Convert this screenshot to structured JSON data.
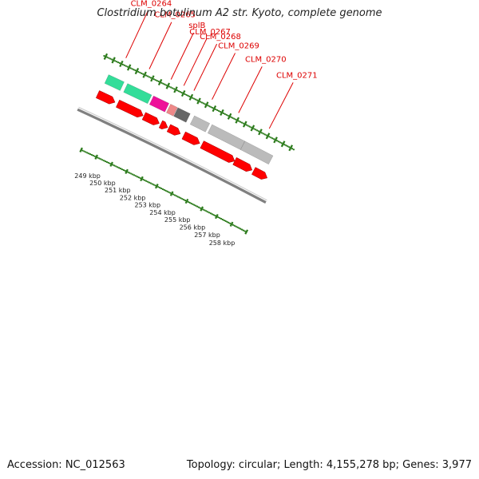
{
  "title": "Clostridium botulinum A2 str. Kyoto, complete genome",
  "footer": {
    "accession": "Accession: NC_012563",
    "summary": "Topology: circular; Length: 4,155,278 bp; Genes: 3,977"
  },
  "colors": {
    "label_red": "#dd0000",
    "cds_red": "#ff0000",
    "backbone": "#808080",
    "tick_green": "#2a7a1a"
  },
  "features": [
    {
      "name": "CLM_0264",
      "start": 247.6,
      "end": 248.6,
      "color": "#33dd99"
    },
    {
      "name": "CLM_0265",
      "start": 248.82,
      "end": 250.38,
      "color": "#33dd99"
    },
    {
      "name": "splB",
      "start": 250.5,
      "end": 251.5,
      "color": "#ee1199"
    },
    {
      "name": "CLM_0267",
      "start": 251.6,
      "end": 252.05,
      "color": "#ee8888"
    },
    {
      "name": "CLM_0268",
      "start": 252.08,
      "end": 252.88,
      "color": "#666666"
    },
    {
      "name": "CLM_0269",
      "start": 253.15,
      "end": 254.15,
      "color": "#bbbbbb"
    },
    {
      "name": "CLM_0270",
      "start": 254.3,
      "end": 256.45,
      "color": "#bbbbbb"
    },
    {
      "name": "CLM_0271",
      "start": 256.45,
      "end": 258.3,
      "color": "#bbbbbb"
    }
  ],
  "cds": [
    {
      "start": 247.5,
      "end": 248.62
    },
    {
      "start": 248.8,
      "end": 250.45
    },
    {
      "start": 250.5,
      "end": 251.5
    },
    {
      "start": 251.6,
      "end": 252.05
    },
    {
      "start": 252.12,
      "end": 252.88
    },
    {
      "start": 253.1,
      "end": 254.15
    },
    {
      "start": 254.3,
      "end": 256.45
    },
    {
      "start": 256.45,
      "end": 257.6
    },
    {
      "start": 257.7,
      "end": 258.6
    }
  ],
  "ticks": [
    {
      "kbp": 249,
      "label": "249 kbp"
    },
    {
      "kbp": 250,
      "label": "250 kbp"
    },
    {
      "kbp": 251,
      "label": "251 kbp"
    },
    {
      "kbp": 252,
      "label": "252 kbp"
    },
    {
      "kbp": 253,
      "label": "253 kbp"
    },
    {
      "kbp": 254,
      "label": "254 kbp"
    },
    {
      "kbp": 255,
      "label": "255 kbp"
    },
    {
      "kbp": 256,
      "label": "256 kbp"
    },
    {
      "kbp": 257,
      "label": "257 kbp"
    },
    {
      "kbp": 258,
      "label": "258 kbp"
    }
  ]
}
